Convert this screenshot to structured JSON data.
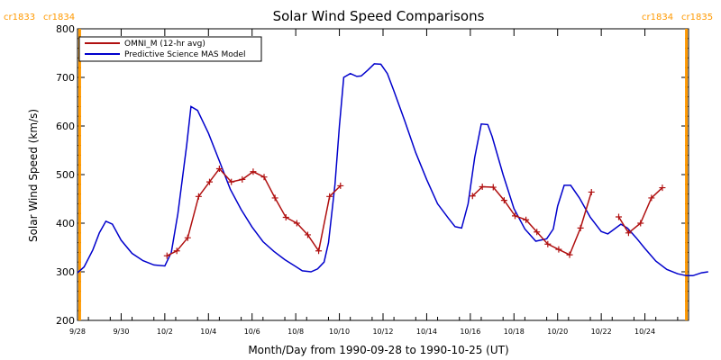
{
  "chart_data": {
    "type": "line",
    "title": "Solar Wind Speed Comparisons",
    "xlabel": "Month/Day from 1990-09-28 to 1990-10-25 (UT)",
    "ylabel": "Solar Wind Speed (km/s)",
    "ylim": [
      200,
      800
    ],
    "yticks": [
      200,
      300,
      400,
      500,
      600,
      700,
      800
    ],
    "xticks": [
      {
        "label": "9/28",
        "day": 0
      },
      {
        "label": "9/30",
        "day": 2
      },
      {
        "label": "10/2",
        "day": 4
      },
      {
        "label": "10/4",
        "day": 6
      },
      {
        "label": "10/6",
        "day": 8
      },
      {
        "label": "10/8",
        "day": 10
      },
      {
        "label": "10/10",
        "day": 12
      },
      {
        "label": "10/12",
        "day": 14
      },
      {
        "label": "10/14",
        "day": 16
      },
      {
        "label": "10/16",
        "day": 18
      },
      {
        "label": "10/18",
        "day": 20
      },
      {
        "label": "10/20",
        "day": 22
      },
      {
        "label": "10/22",
        "day": 24
      },
      {
        "label": "10/24",
        "day": 26
      }
    ],
    "xlim_days": [
      0,
      28
    ],
    "grid": false,
    "legend_position": "top-left",
    "colors": {
      "omni": "#b01010",
      "model": "#0000cc",
      "rotation": "#ff9900",
      "axis": "#000000"
    },
    "rotation_markers": [
      {
        "label_left": "cr1833",
        "label_right": "cr1834",
        "day": 0.1
      },
      {
        "label_left": "cr1834",
        "label_right": "cr1835",
        "day": 27.9
      }
    ],
    "series": [
      {
        "name": "Predictive Science MAS Model",
        "style": "line",
        "points": [
          [
            0.0,
            298
          ],
          [
            0.3,
            310
          ],
          [
            0.7,
            345
          ],
          [
            1.0,
            380
          ],
          [
            1.3,
            404
          ],
          [
            1.6,
            398
          ],
          [
            2.0,
            365
          ],
          [
            2.5,
            338
          ],
          [
            3.0,
            323
          ],
          [
            3.5,
            314
          ],
          [
            4.0,
            312
          ],
          [
            4.3,
            340
          ],
          [
            4.6,
            420
          ],
          [
            5.0,
            560
          ],
          [
            5.2,
            640
          ],
          [
            5.5,
            632
          ],
          [
            6.0,
            585
          ],
          [
            6.5,
            528
          ],
          [
            7.0,
            470
          ],
          [
            7.5,
            428
          ],
          [
            8.0,
            392
          ],
          [
            8.5,
            362
          ],
          [
            9.0,
            342
          ],
          [
            9.5,
            325
          ],
          [
            10.0,
            311
          ],
          [
            10.3,
            302
          ],
          [
            10.7,
            300
          ],
          [
            11.0,
            306
          ],
          [
            11.3,
            320
          ],
          [
            11.5,
            360
          ],
          [
            11.8,
            480
          ],
          [
            12.0,
            600
          ],
          [
            12.2,
            700
          ],
          [
            12.5,
            708
          ],
          [
            12.8,
            702
          ],
          [
            13.0,
            703
          ],
          [
            13.3,
            715
          ],
          [
            13.6,
            728
          ],
          [
            13.9,
            727
          ],
          [
            14.2,
            708
          ],
          [
            14.5,
            672
          ],
          [
            15.0,
            610
          ],
          [
            15.5,
            545
          ],
          [
            16.0,
            490
          ],
          [
            16.5,
            440
          ],
          [
            17.0,
            410
          ],
          [
            17.3,
            393
          ],
          [
            17.6,
            390
          ],
          [
            17.9,
            440
          ],
          [
            18.2,
            535
          ],
          [
            18.5,
            604
          ],
          [
            18.8,
            603
          ],
          [
            19.0,
            578
          ],
          [
            19.5,
            500
          ],
          [
            20.0,
            430
          ],
          [
            20.5,
            388
          ],
          [
            21.0,
            363
          ],
          [
            21.5,
            368
          ],
          [
            21.8,
            388
          ],
          [
            22.0,
            435
          ],
          [
            22.3,
            478
          ],
          [
            22.6,
            478
          ],
          [
            23.0,
            452
          ],
          [
            23.5,
            412
          ],
          [
            24.0,
            383
          ],
          [
            24.3,
            378
          ],
          [
            24.6,
            388
          ],
          [
            24.9,
            398
          ],
          [
            25.2,
            390
          ],
          [
            25.6,
            370
          ],
          [
            26.0,
            348
          ],
          [
            26.5,
            322
          ],
          [
            27.0,
            305
          ],
          [
            27.5,
            296
          ],
          [
            27.9,
            292
          ],
          [
            28.2,
            292
          ],
          [
            28.6,
            298
          ],
          [
            28.9,
            300
          ]
        ]
      },
      {
        "name": "OMNI_M (12-hr avg)",
        "style": "line-plus",
        "segments": [
          [
            [
              4.1,
              333
            ],
            [
              4.55,
              343
            ],
            [
              5.05,
              370
            ],
            [
              5.55,
              455
            ],
            [
              6.05,
              485
            ],
            [
              6.5,
              512
            ],
            [
              7.05,
              485
            ],
            [
              7.55,
              490
            ],
            [
              8.05,
              506
            ],
            [
              8.55,
              495
            ],
            [
              9.05,
              452
            ],
            [
              9.55,
              412
            ],
            [
              10.05,
              400
            ],
            [
              10.55,
              376
            ],
            [
              11.05,
              343
            ],
            [
              11.55,
              455
            ],
            [
              12.05,
              477
            ]
          ],
          [
            [
              18.1,
              456
            ],
            [
              18.55,
              475
            ],
            [
              19.05,
              474
            ],
            [
              19.55,
              447
            ],
            [
              20.05,
              415
            ],
            [
              20.55,
              407
            ],
            [
              21.05,
              382
            ],
            [
              21.55,
              357
            ],
            [
              22.05,
              346
            ],
            [
              22.55,
              335
            ],
            [
              23.05,
              390
            ],
            [
              23.55,
              464
            ]
          ],
          [
            [
              24.8,
              413
            ],
            [
              25.25,
              380
            ],
            [
              25.8,
              400
            ],
            [
              26.3,
              452
            ],
            [
              26.8,
              473
            ]
          ]
        ]
      }
    ]
  }
}
